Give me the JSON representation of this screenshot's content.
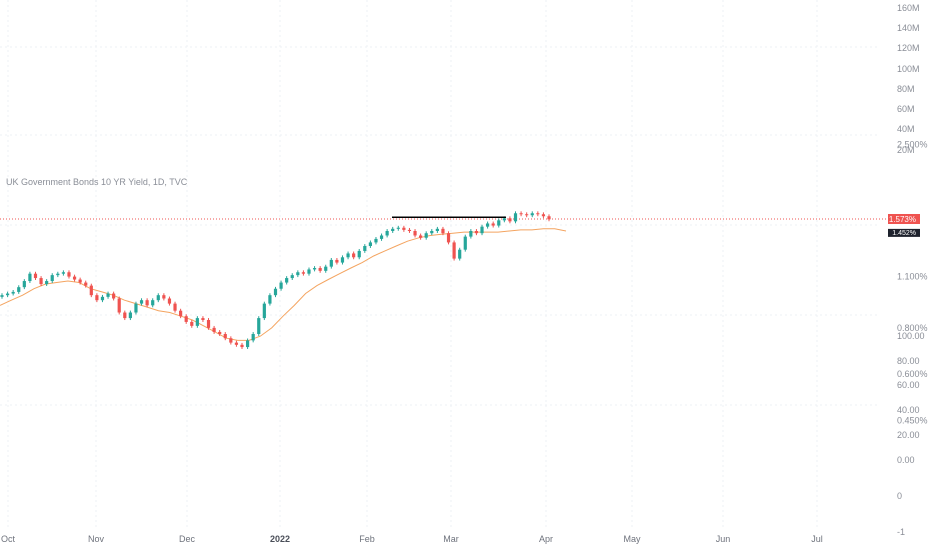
{
  "chart_data": {
    "type": "candlestick",
    "title": "UK Government Bonds 10 YR Yield, 1D, TVC",
    "colors": {
      "up": "#26a69a",
      "down": "#ef5350",
      "ma": "#f4a460",
      "current_price_line": "#ef5350",
      "resistance_line": "#000000",
      "grid": "#eef0f4"
    },
    "grid": true,
    "x_axis_labels": [
      "Oct",
      "Nov",
      "Dec",
      "2022",
      "Feb",
      "Mar",
      "Apr",
      "May",
      "Jun",
      "Jul"
    ],
    "price_axis_labels": [
      "2.500%",
      "1.100%",
      "0.800%",
      "0.600%",
      "0.450%"
    ],
    "volume_axis_labels": [
      "160M",
      "140M",
      "120M",
      "100M",
      "80M",
      "60M",
      "40M",
      "20M"
    ],
    "indicator_axis_labels": [
      "100.00",
      "80.00",
      "60.00",
      "40.00",
      "20.00",
      "0.00",
      "0",
      "-1"
    ],
    "current_price_label": "1.573%",
    "secondary_price_label": "1.452%",
    "current_price": 1.573,
    "ma_current": 1.452,
    "resistance_level": 1.59,
    "series": [
      {
        "name": "price",
        "closes": [
          0.98,
          0.99,
          1.0,
          1.03,
          1.07,
          1.12,
          1.09,
          1.05,
          1.07,
          1.11,
          1.12,
          1.13,
          1.1,
          1.08,
          1.06,
          1.04,
          0.98,
          0.95,
          0.97,
          0.99,
          0.96,
          0.88,
          0.85,
          0.88,
          0.93,
          0.95,
          0.92,
          0.95,
          0.98,
          0.96,
          0.93,
          0.89,
          0.86,
          0.83,
          0.81,
          0.85,
          0.84,
          0.8,
          0.78,
          0.77,
          0.75,
          0.73,
          0.72,
          0.71,
          0.74,
          0.77,
          0.85,
          0.93,
          0.98,
          1.02,
          1.06,
          1.09,
          1.11,
          1.13,
          1.12,
          1.15,
          1.16,
          1.14,
          1.17,
          1.22,
          1.2,
          1.24,
          1.27,
          1.24,
          1.29,
          1.33,
          1.36,
          1.39,
          1.42,
          1.46,
          1.48,
          1.49,
          1.47,
          1.46,
          1.42,
          1.4,
          1.44,
          1.46,
          1.48,
          1.44,
          1.36,
          1.23,
          1.3,
          1.41,
          1.46,
          1.44,
          1.5,
          1.53,
          1.51,
          1.56,
          1.58,
          1.55,
          1.63,
          1.62,
          1.61,
          1.63,
          1.62,
          1.6,
          1.57
        ]
      },
      {
        "name": "moving average",
        "values": [
          0.92,
          0.95,
          0.98,
          1.02,
          1.05,
          1.06,
          1.07,
          1.06,
          1.02,
          1.0,
          0.98,
          0.95,
          0.93,
          0.91,
          0.89,
          0.88,
          0.86,
          0.84,
          0.81,
          0.78,
          0.75,
          0.74,
          0.74,
          0.76,
          0.8,
          0.86,
          0.92,
          0.99,
          1.04,
          1.08,
          1.12,
          1.16,
          1.2,
          1.25,
          1.29,
          1.33,
          1.37,
          1.4,
          1.42,
          1.43,
          1.44,
          1.45,
          1.45,
          1.45,
          1.45,
          1.46,
          1.47,
          1.47,
          1.48,
          1.48,
          1.46
        ]
      }
    ]
  }
}
